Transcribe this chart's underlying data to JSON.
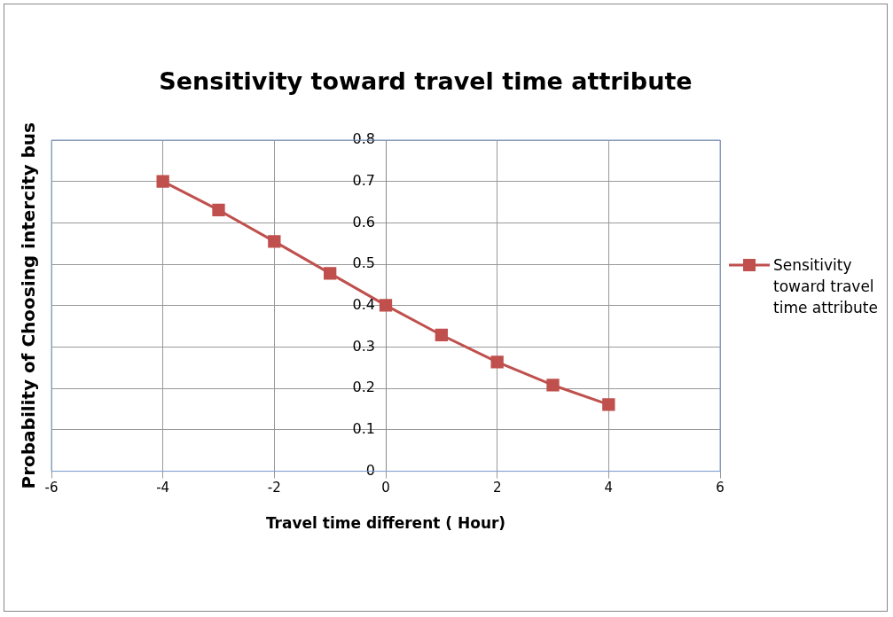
{
  "chart_data": {
    "type": "line",
    "title": "Sensitivity  toward travel  time attribute",
    "xlabel": "Travel time different ( Hour)",
    "ylabel": "Probability of Choosing intercity bus",
    "x": [
      -4,
      -3,
      -2,
      -1,
      0,
      1,
      2,
      3,
      4
    ],
    "series": [
      {
        "name": "Sensitivity toward travel time attribute",
        "color": "#c0504d",
        "values": [
          0.7,
          0.631,
          0.555,
          0.478,
          0.401,
          0.329,
          0.264,
          0.208,
          0.161
        ]
      }
    ],
    "xlim": [
      -6,
      6
    ],
    "xticks": [
      -6,
      -4,
      -2,
      0,
      2,
      4,
      6
    ],
    "ylim": [
      0,
      0.8
    ],
    "yticks": [
      0,
      0.1,
      0.2,
      0.3,
      0.4,
      0.5,
      0.6,
      0.7,
      0.8
    ],
    "grid": true,
    "legend": "right",
    "marker": "square",
    "line_style": "solid"
  }
}
